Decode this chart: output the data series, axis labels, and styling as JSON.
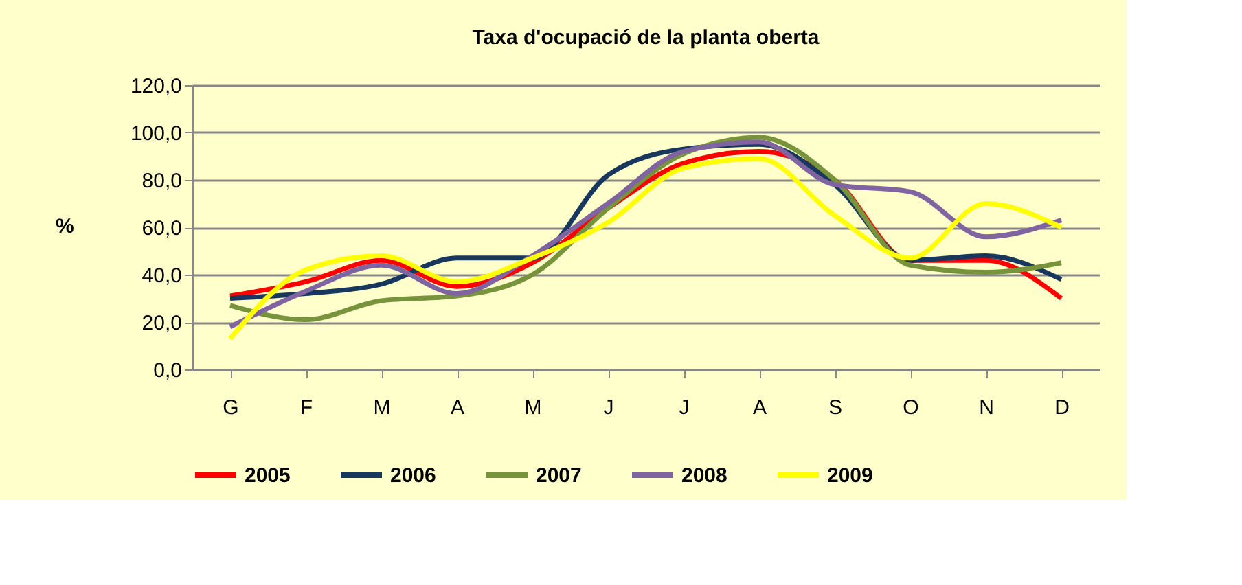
{
  "chart_data": {
    "type": "line",
    "title": "Taxa d'ocupació de la planta oberta",
    "ylabel": "%",
    "categories": [
      "G",
      "F",
      "M",
      "A",
      "M",
      "J",
      "J",
      "A",
      "S",
      "O",
      "N",
      "D"
    ],
    "series": [
      {
        "name": "2005",
        "color": "#ff0000",
        "values": [
          31,
          37,
          46,
          35,
          45,
          68,
          87,
          92,
          80,
          46,
          46,
          30
        ]
      },
      {
        "name": "2006",
        "color": "#17375e",
        "values": [
          30,
          32,
          36,
          47,
          47,
          82,
          93,
          95,
          78,
          46,
          48,
          38
        ]
      },
      {
        "name": "2007",
        "color": "#77933c",
        "values": [
          27,
          21,
          29,
          31,
          40,
          68,
          91,
          98,
          80,
          44,
          41,
          45
        ]
      },
      {
        "name": "2008",
        "color": "#8064a2",
        "values": [
          18,
          33,
          44,
          32,
          48,
          70,
          92,
          96,
          78,
          75,
          56,
          63
        ]
      },
      {
        "name": "2009",
        "color": "#ffff00",
        "values": [
          13,
          42,
          48,
          37,
          47,
          62,
          85,
          89,
          65,
          47,
          70,
          60
        ]
      }
    ],
    "ylim": [
      0,
      120
    ],
    "yticks": [
      {
        "value": 0,
        "label": "0,0"
      },
      {
        "value": 20,
        "label": "20,0"
      },
      {
        "value": 40,
        "label": "40,0"
      },
      {
        "value": 60,
        "label": "60,0"
      },
      {
        "value": 80,
        "label": "80,0"
      },
      {
        "value": 100,
        "label": "100,0"
      },
      {
        "value": 120,
        "label": "120,0"
      }
    ],
    "grid": "y",
    "legend": "bottom",
    "marker": "none",
    "line_style": "solid"
  }
}
